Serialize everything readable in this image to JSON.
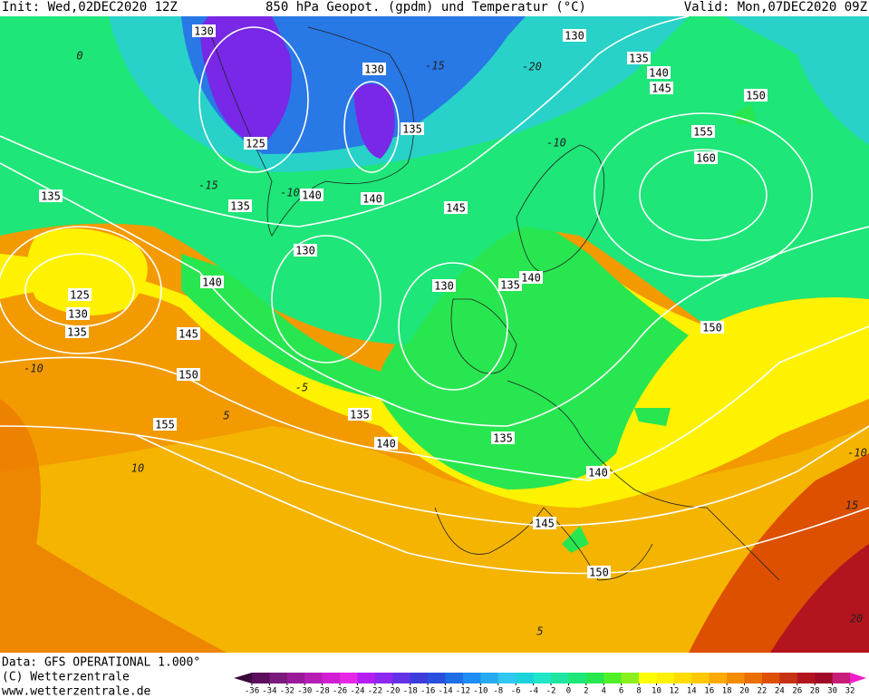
{
  "header": {
    "init": "Init: Wed,02DEC2020 12Z",
    "title": "850 hPa Geopot. (gpdm) und Temperatur (°C)",
    "valid": "Valid: Mon,07DEC2020 09Z"
  },
  "footer": {
    "data": "Data: GFS OPERATIONAL 1.000°",
    "copyright": "(C) Wetterzentrale",
    "url": "www.wetterzentrale.de"
  },
  "colorbar": {
    "ticks": [
      -36,
      -34,
      -32,
      -30,
      -28,
      -26,
      -24,
      -22,
      -20,
      -18,
      -16,
      -14,
      -12,
      -10,
      -8,
      -6,
      -4,
      -2,
      0,
      2,
      4,
      6,
      8,
      10,
      12,
      14,
      16,
      18,
      20,
      22,
      24,
      26,
      28,
      30,
      32
    ],
    "colors": [
      "#3a0a3a",
      "#5c0f5c",
      "#7a1a7a",
      "#9a1a9a",
      "#b41eb4",
      "#d21ed2",
      "#e628e6",
      "#b41ef0",
      "#8c28f0",
      "#6432e6",
      "#3c3cdc",
      "#2850dc",
      "#1e6ee6",
      "#1e8cf0",
      "#28aaf0",
      "#32c8f0",
      "#1ed2dc",
      "#1ee6c8",
      "#1ee6a0",
      "#1ee678",
      "#28e650",
      "#50f028",
      "#8cf01e",
      "#ffff00",
      "#fff000",
      "#ffdc00",
      "#ffc800",
      "#ffaa00",
      "#f58c00",
      "#eb6e00",
      "#dc5000",
      "#c83214",
      "#b4141e",
      "#a00a28",
      "#c81e78",
      "#f01ec8"
    ]
  },
  "geopotential_labels": [
    "130",
    "130",
    "135",
    "140",
    "145",
    "150",
    "130",
    "135",
    "125",
    "155",
    "160",
    "135",
    "135",
    "140",
    "140",
    "145",
    "130",
    "140",
    "125",
    "130",
    "135",
    "130",
    "135",
    "140",
    "150",
    "145",
    "150",
    "135",
    "140",
    "135",
    "155",
    "140",
    "145",
    "150"
  ],
  "temperature_labels": [
    "-15",
    "-20",
    "-15",
    "-10",
    "-10",
    "-5",
    "5",
    "-10",
    "10",
    "15",
    "20",
    "5",
    "0",
    "-10"
  ]
}
